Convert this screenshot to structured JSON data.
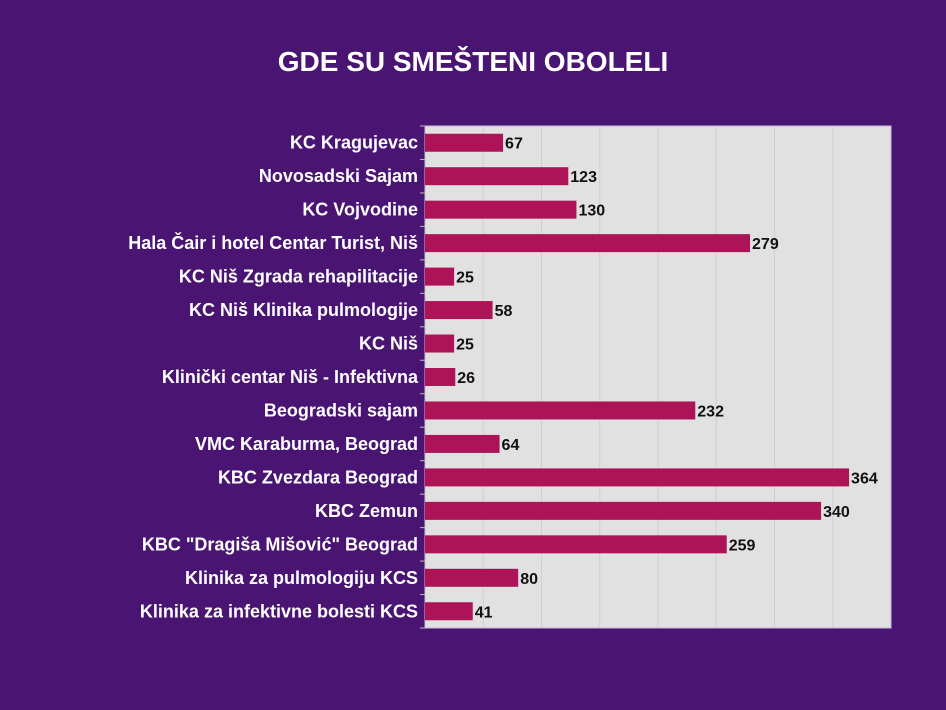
{
  "chart_data": {
    "type": "bar",
    "orientation": "horizontal",
    "title": "GDE SU SMEŠTENI OBOLELI",
    "categories": [
      "KC Kragujevac",
      "Novosadski Sajam",
      "KC Vojvodine",
      "Hala Čair i hotel Centar Turist, Niš",
      "KC Niš Zgrada rehapilitacije",
      "KC Niš Klinika pulmologije",
      "KC Niš",
      "Klinički centar Niš - Infektivna",
      "Beogradski sajam",
      "VMC Karaburma, Beograd",
      "KBC Zvezdara Beograd",
      "KBC Zemun",
      "KBC \"Dragiša Mišović\" Beograd",
      "Klinika za pulmologiju KCS",
      "Klinika za infektivne bolesti KCS"
    ],
    "values": [
      67,
      123,
      130,
      279,
      25,
      58,
      25,
      26,
      232,
      64,
      364,
      340,
      259,
      80,
      41
    ],
    "xlim": [
      0,
      400
    ],
    "x_grid_step": 50,
    "grid": true,
    "legend": "none",
    "colors": {
      "background": "#4a1572",
      "plot": "#e1e1e1",
      "bar": "#ad1457",
      "grid": "#cfcfcf",
      "label": "#ffffff",
      "value": "#111111"
    }
  }
}
